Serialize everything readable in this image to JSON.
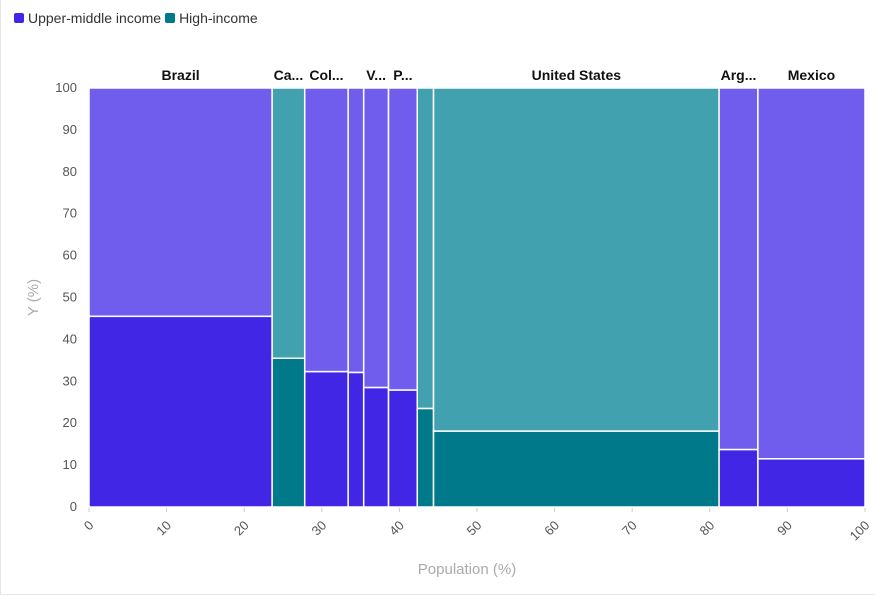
{
  "legend": [
    {
      "label": "Upper-middle income",
      "color_key": "upper_middle"
    },
    {
      "label": "High-income",
      "color_key": "high"
    }
  ],
  "colors": {
    "upper_middle_light": "#715ded",
    "upper_middle_dark": "#4226e6",
    "high_light": "#42a1ae",
    "high_dark": "#007a8a",
    "swatch_upper_middle": "#4226e6",
    "swatch_high": "#007a8a"
  },
  "chart_data": {
    "type": "mosaic",
    "xlabel": "Population (%)",
    "ylabel": "Y (%)",
    "xlim": [
      0,
      100
    ],
    "ylim": [
      0,
      100
    ],
    "x_ticks": [
      "0",
      "10",
      "20",
      "30",
      "40",
      "50",
      "60",
      "70",
      "80",
      "90",
      "100"
    ],
    "y_ticks": [
      "0",
      "10",
      "20",
      "30",
      "40",
      "50",
      "60",
      "70",
      "80",
      "90",
      "100"
    ],
    "bars": [
      {
        "label": "Brazil",
        "x0": 0,
        "x1": 23.6,
        "group": "upper_middle",
        "split": 45.5
      },
      {
        "label": "Ca...",
        "x0": 23.6,
        "x1": 27.8,
        "group": "high",
        "split": 35.5
      },
      {
        "label": "Col...",
        "x0": 27.8,
        "x1": 33.4,
        "group": "upper_middle",
        "split": 32.3
      },
      {
        "label": "",
        "x0": 33.4,
        "x1": 35.4,
        "group": "upper_middle",
        "split": 32.1
      },
      {
        "label": "V...",
        "x0": 35.4,
        "x1": 38.6,
        "group": "upper_middle",
        "split": 28.5
      },
      {
        "label": "P...",
        "x0": 38.6,
        "x1": 42.3,
        "group": "upper_middle",
        "split": 27.9
      },
      {
        "label": "",
        "x0": 42.3,
        "x1": 44.4,
        "group": "high",
        "split": 23.5
      },
      {
        "label": "United States",
        "x0": 44.4,
        "x1": 81.2,
        "group": "high",
        "split": 18.1
      },
      {
        "label": "Arg...",
        "x0": 81.2,
        "x1": 86.2,
        "group": "upper_middle",
        "split": 13.7
      },
      {
        "label": "Mexico",
        "x0": 86.2,
        "x1": 100,
        "group": "upper_middle",
        "split": 11.5
      }
    ]
  }
}
